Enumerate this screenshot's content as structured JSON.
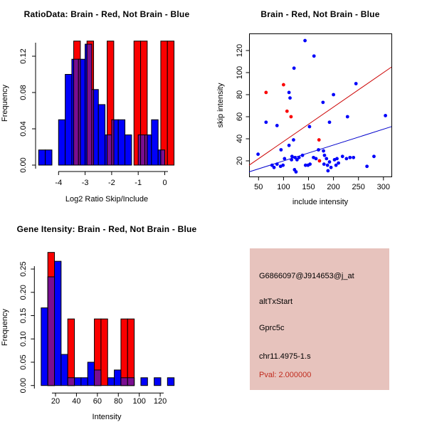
{
  "colors": {
    "blue": "#0000fa",
    "red": "#fa0000",
    "purple": "#7a0e90",
    "red_line": "#cc0000",
    "blue_line": "#0000cc",
    "axis": "#000000",
    "info_bg": "#e7c3bd",
    "pval_red": "#c02b1e",
    "background": "#ffffff"
  },
  "chart_data": [
    {
      "type": "bar",
      "subtype": "overlaid-histogram",
      "title": "RatioData: Brain - Red, Not Brain - Blue",
      "xlabel": "Log2 Ratio Skip/Include",
      "ylabel": "Frequency",
      "xticks": [
        -4,
        -3,
        -2,
        -1,
        0
      ],
      "xtick_labels": [
        "-4",
        "-3",
        "-2",
        "-1",
        "0"
      ],
      "yticks": [
        0,
        0.04,
        0.08,
        0.12
      ],
      "ytick_labels": [
        "0.00",
        "0.04",
        "0.08",
        "0.12"
      ],
      "xlim": [
        -4.85,
        0.45
      ],
      "ylim": [
        0,
        0.1367
      ],
      "legend_note": "Brain - Red, Not Brain - Blue",
      "blue": {
        "bin_start": -4.75,
        "bin_width": 0.25,
        "freqs": [
          0.0167,
          0.0167,
          0,
          0.05,
          0.1,
          0.1167,
          0.1167,
          0.1333,
          0.0833,
          0.0667,
          0.0333,
          0.05,
          0.05,
          0.0333,
          0,
          0.0333,
          0.0333,
          0.05,
          0.0167,
          0
        ]
      },
      "red": {
        "bars": [
          [
            -3.43,
            -3.18,
            0.1429
          ],
          [
            -2.93,
            -2.68,
            0.1429
          ],
          [
            -2.17,
            -1.92,
            0.1429
          ],
          [
            -1.16,
            -0.91,
            0.1429
          ],
          [
            -0.91,
            -0.66,
            0.1429
          ],
          [
            -0.15,
            0.1,
            0.1429
          ],
          [
            0.1,
            0.35,
            0.1429
          ]
        ]
      }
    },
    {
      "type": "scatter",
      "title": "Brain - Red, Not Brain - Blue",
      "xlabel": "include intensity",
      "ylabel": "skip intensity",
      "xticks": [
        50,
        100,
        150,
        200,
        250,
        300
      ],
      "xtick_labels": [
        "50",
        "100",
        "150",
        "200",
        "250",
        "300"
      ],
      "yticks": [
        20,
        40,
        60,
        80,
        100,
        120
      ],
      "ytick_labels": [
        "20",
        "40",
        "60",
        "80",
        "100",
        "120"
      ],
      "xlim": [
        30,
        316
      ],
      "ylim": [
        5,
        135
      ],
      "blue_points": [
        [
          143,
          129
        ],
        [
          161,
          115
        ],
        [
          121,
          104
        ],
        [
          245,
          90
        ],
        [
          200,
          80
        ],
        [
          111,
          82
        ],
        [
          113,
          77
        ],
        [
          179,
          73
        ],
        [
          304,
          61
        ],
        [
          228,
          60
        ],
        [
          65,
          55
        ],
        [
          87,
          52
        ],
        [
          152,
          51
        ],
        [
          192,
          55
        ],
        [
          49,
          26
        ],
        [
          77,
          16
        ],
        [
          81,
          14
        ],
        [
          87,
          17
        ],
        [
          94,
          15
        ],
        [
          99,
          16
        ],
        [
          95,
          30
        ],
        [
          102,
          22
        ],
        [
          111,
          34
        ],
        [
          120,
          39
        ],
        [
          117,
          24
        ],
        [
          123,
          23
        ],
        [
          116,
          21
        ],
        [
          127,
          21
        ],
        [
          131,
          23
        ],
        [
          122,
          12
        ],
        [
          138,
          25
        ],
        [
          144,
          16
        ],
        [
          149,
          16
        ],
        [
          153,
          17
        ],
        [
          160,
          23
        ],
        [
          165,
          22
        ],
        [
          170,
          30
        ],
        [
          180,
          29
        ],
        [
          182,
          25
        ],
        [
          186,
          22
        ],
        [
          181,
          17
        ],
        [
          188,
          16
        ],
        [
          192,
          19
        ],
        [
          195,
          14
        ],
        [
          189,
          11
        ],
        [
          202,
          21
        ],
        [
          207,
          22
        ],
        [
          205,
          16
        ],
        [
          210,
          18
        ],
        [
          218,
          24
        ],
        [
          226,
          22
        ],
        [
          233,
          23
        ],
        [
          240,
          23
        ],
        [
          281,
          24
        ],
        [
          267,
          15
        ],
        [
          125,
          10
        ]
      ],
      "red_points": [
        [
          65,
          82
        ],
        [
          100,
          89
        ],
        [
          107,
          65
        ],
        [
          115,
          60
        ],
        [
          171,
          39
        ],
        [
          172,
          20
        ]
      ],
      "red_line": {
        "x1": 31,
        "y1": 16,
        "x2": 316,
        "y2": 105
      },
      "blue_line": {
        "x1": 31,
        "y1": 10,
        "x2": 316,
        "y2": 51
      }
    },
    {
      "type": "bar",
      "subtype": "overlaid-histogram",
      "title": "Gene Itensity: Brain - Red, Not Brain - Blue",
      "xlabel": "Intensity",
      "ylabel": "Frequency",
      "xticks": [
        20,
        40,
        60,
        80,
        100,
        120
      ],
      "xtick_labels": [
        "20",
        "40",
        "60",
        "80",
        "100",
        "120"
      ],
      "yticks": [
        0,
        0.05,
        0.1,
        0.15,
        0.2,
        0.25
      ],
      "ytick_labels": [
        "0.00",
        "0.05",
        "0.10",
        "0.15",
        "0.20",
        "0.25"
      ],
      "xlim": [
        5,
        135
      ],
      "ylim": [
        0,
        0.2857
      ],
      "legend_note": "Brain - Red, Not Brain - Blue",
      "blue": {
        "bin_start": 6.3,
        "bin_width": 6.35,
        "freqs": [
          0.1667,
          0.2333,
          0.2667,
          0.0667,
          0.0167,
          0.0167,
          0.0167,
          0.05,
          0.0333,
          0,
          0.0167,
          0.0333,
          0.0167,
          0.0167,
          0,
          0.0167,
          0,
          0.0167,
          0,
          0.0167
        ]
      },
      "red": {
        "bars": [
          [
            12.65,
            19.0,
            0.2857
          ],
          [
            31.7,
            38.05,
            0.1429
          ],
          [
            57.1,
            63.45,
            0.1429
          ],
          [
            63.45,
            69.8,
            0.1429
          ],
          [
            82.5,
            88.85,
            0.1429
          ],
          [
            88.85,
            95.2,
            0.1429
          ]
        ]
      }
    }
  ],
  "info_panel": {
    "probe_id": "G6866097@J914653@j_at",
    "event_type": "altTxStart",
    "gene": "Gprc5c",
    "location": "chr11.4975-1.s",
    "pval": "Pval: 2.000000"
  }
}
